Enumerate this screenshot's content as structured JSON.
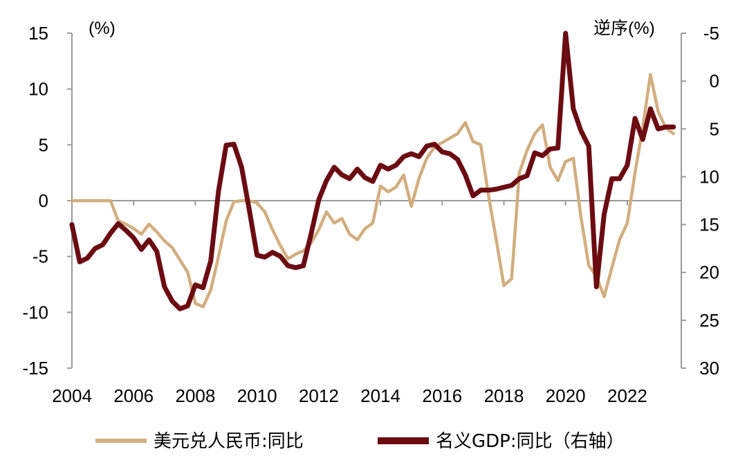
{
  "chart_data": {
    "type": "line",
    "title": "",
    "left_axis": {
      "unit_label": "(%)",
      "range": [
        -15,
        15
      ],
      "ticks": [
        15,
        10,
        5,
        0,
        -5,
        -10,
        -15
      ]
    },
    "right_axis": {
      "unit_label": "逆序(%)",
      "inverted": true,
      "range": [
        -5,
        30
      ],
      "ticks": [
        -5,
        0,
        5,
        10,
        15,
        20,
        25,
        30
      ]
    },
    "x_axis": {
      "range": [
        2004,
        2023.75
      ],
      "ticks": [
        "2004",
        "2006",
        "2008",
        "2010",
        "2012",
        "2014",
        "2016",
        "2018",
        "2020",
        "2022"
      ]
    },
    "legend": {
      "position": "bottom"
    },
    "series": [
      {
        "name": "美元兑人民币:同比",
        "axis": "left",
        "color": "#D2AE7F",
        "points": [
          [
            2004.0,
            0.0
          ],
          [
            2004.25,
            0.0
          ],
          [
            2004.5,
            0.0
          ],
          [
            2004.75,
            0.0
          ],
          [
            2005.0,
            0.0
          ],
          [
            2005.25,
            0.0
          ],
          [
            2005.5,
            -1.8
          ],
          [
            2005.75,
            -2.1
          ],
          [
            2006.0,
            -2.5
          ],
          [
            2006.25,
            -3.0
          ],
          [
            2006.5,
            -2.1
          ],
          [
            2006.75,
            -2.8
          ],
          [
            2007.0,
            -3.6
          ],
          [
            2007.25,
            -4.2
          ],
          [
            2007.5,
            -5.3
          ],
          [
            2007.75,
            -6.4
          ],
          [
            2008.0,
            -9.2
          ],
          [
            2008.25,
            -9.5
          ],
          [
            2008.5,
            -8.0
          ],
          [
            2008.75,
            -5.0
          ],
          [
            2009.0,
            -1.8
          ],
          [
            2009.25,
            -0.1
          ],
          [
            2009.5,
            0.0
          ],
          [
            2009.75,
            0.0
          ],
          [
            2010.0,
            -0.2
          ],
          [
            2010.25,
            -1.0
          ],
          [
            2010.5,
            -2.6
          ],
          [
            2010.75,
            -4.0
          ],
          [
            2011.0,
            -5.2
          ],
          [
            2011.25,
            -4.8
          ],
          [
            2011.5,
            -4.5
          ],
          [
            2011.75,
            -3.8
          ],
          [
            2012.0,
            -2.6
          ],
          [
            2012.25,
            -1.0
          ],
          [
            2012.5,
            -2.0
          ],
          [
            2012.75,
            -1.6
          ],
          [
            2013.0,
            -3.0
          ],
          [
            2013.25,
            -3.5
          ],
          [
            2013.5,
            -2.5
          ],
          [
            2013.75,
            -2.0
          ],
          [
            2014.0,
            1.3
          ],
          [
            2014.25,
            0.8
          ],
          [
            2014.5,
            1.2
          ],
          [
            2014.75,
            2.3
          ],
          [
            2015.0,
            -0.5
          ],
          [
            2015.25,
            2.0
          ],
          [
            2015.5,
            3.8
          ],
          [
            2015.75,
            4.8
          ],
          [
            2016.0,
            5.2
          ],
          [
            2016.25,
            5.6
          ],
          [
            2016.5,
            6.0
          ],
          [
            2016.75,
            7.0
          ],
          [
            2017.0,
            5.3
          ],
          [
            2017.25,
            5.0
          ],
          [
            2017.5,
            0.5
          ],
          [
            2017.75,
            -3.5
          ],
          [
            2018.0,
            -7.6
          ],
          [
            2018.25,
            -7.0
          ],
          [
            2018.5,
            2.5
          ],
          [
            2018.75,
            4.5
          ],
          [
            2019.0,
            6.0
          ],
          [
            2019.25,
            6.8
          ],
          [
            2019.5,
            3.0
          ],
          [
            2019.75,
            1.8
          ],
          [
            2020.0,
            3.5
          ],
          [
            2020.25,
            3.8
          ],
          [
            2020.5,
            -1.5
          ],
          [
            2020.75,
            -5.8
          ],
          [
            2021.0,
            -6.8
          ],
          [
            2021.25,
            -8.6
          ],
          [
            2021.5,
            -6.0
          ],
          [
            2021.75,
            -3.5
          ],
          [
            2022.0,
            -2.0
          ],
          [
            2022.25,
            2.5
          ],
          [
            2022.5,
            6.5
          ],
          [
            2022.75,
            11.3
          ],
          [
            2023.0,
            8.0
          ],
          [
            2023.25,
            6.5
          ],
          [
            2023.5,
            6.0
          ]
        ]
      },
      {
        "name": "名义GDP:同比（右轴）",
        "axis": "right",
        "color": "#6B0B12",
        "points": [
          [
            2004.0,
            15.0
          ],
          [
            2004.25,
            18.9
          ],
          [
            2004.5,
            18.5
          ],
          [
            2004.75,
            17.5
          ],
          [
            2005.0,
            17.1
          ],
          [
            2005.25,
            15.9
          ],
          [
            2005.5,
            14.9
          ],
          [
            2005.75,
            15.6
          ],
          [
            2006.0,
            16.4
          ],
          [
            2006.25,
            17.6
          ],
          [
            2006.5,
            16.6
          ],
          [
            2006.75,
            17.8
          ],
          [
            2007.0,
            21.5
          ],
          [
            2007.25,
            23.0
          ],
          [
            2007.5,
            23.8
          ],
          [
            2007.75,
            23.5
          ],
          [
            2008.0,
            21.3
          ],
          [
            2008.25,
            21.6
          ],
          [
            2008.5,
            18.8
          ],
          [
            2008.75,
            11.5
          ],
          [
            2009.0,
            6.7
          ],
          [
            2009.25,
            6.6
          ],
          [
            2009.5,
            9.0
          ],
          [
            2009.75,
            13.5
          ],
          [
            2010.0,
            18.2
          ],
          [
            2010.25,
            18.4
          ],
          [
            2010.5,
            17.9
          ],
          [
            2010.75,
            18.3
          ],
          [
            2011.0,
            19.3
          ],
          [
            2011.25,
            19.5
          ],
          [
            2011.5,
            19.3
          ],
          [
            2011.75,
            16.0
          ],
          [
            2012.0,
            12.4
          ],
          [
            2012.25,
            10.4
          ],
          [
            2012.5,
            9.0
          ],
          [
            2012.75,
            9.8
          ],
          [
            2013.0,
            10.2
          ],
          [
            2013.25,
            9.2
          ],
          [
            2013.5,
            10.1
          ],
          [
            2013.75,
            10.5
          ],
          [
            2014.0,
            8.8
          ],
          [
            2014.25,
            9.2
          ],
          [
            2014.5,
            8.8
          ],
          [
            2014.75,
            7.9
          ],
          [
            2015.0,
            7.6
          ],
          [
            2015.25,
            7.9
          ],
          [
            2015.5,
            6.8
          ],
          [
            2015.75,
            6.6
          ],
          [
            2016.0,
            7.4
          ],
          [
            2016.25,
            7.6
          ],
          [
            2016.5,
            8.2
          ],
          [
            2016.75,
            9.8
          ],
          [
            2017.0,
            12.0
          ],
          [
            2017.25,
            11.4
          ],
          [
            2017.5,
            11.4
          ],
          [
            2017.75,
            11.3
          ],
          [
            2018.0,
            11.1
          ],
          [
            2018.25,
            10.9
          ],
          [
            2018.5,
            10.2
          ],
          [
            2018.75,
            9.9
          ],
          [
            2019.0,
            7.5
          ],
          [
            2019.25,
            7.8
          ],
          [
            2019.5,
            7.1
          ],
          [
            2019.75,
            7.0
          ],
          [
            2020.0,
            -5.0
          ],
          [
            2020.25,
            2.9
          ],
          [
            2020.5,
            5.2
          ],
          [
            2020.75,
            6.8
          ],
          [
            2021.0,
            21.5
          ],
          [
            2021.25,
            13.9
          ],
          [
            2021.5,
            10.2
          ],
          [
            2021.75,
            10.2
          ],
          [
            2022.0,
            8.8
          ],
          [
            2022.25,
            3.9
          ],
          [
            2022.5,
            6.1
          ],
          [
            2022.75,
            2.9
          ],
          [
            2023.0,
            5.0
          ],
          [
            2023.25,
            4.8
          ],
          [
            2023.5,
            4.8
          ]
        ]
      }
    ]
  }
}
